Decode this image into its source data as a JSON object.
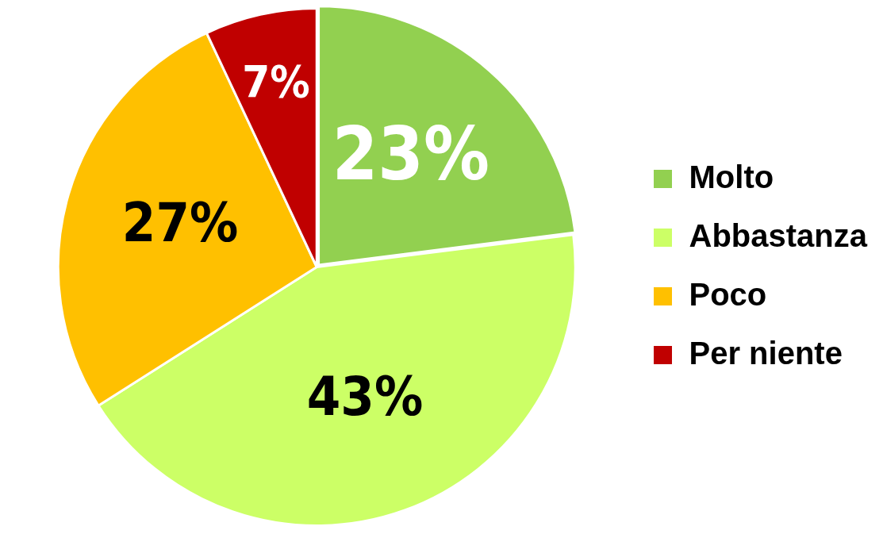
{
  "chart_data": {
    "type": "pie",
    "categories": [
      "Molto",
      "Abbastanza",
      "Poco",
      "Per niente"
    ],
    "values": [
      23,
      43,
      27,
      7
    ],
    "colors": [
      "#92d050",
      "#ccff66",
      "#ffc000",
      "#c00000"
    ],
    "value_labels": [
      "23%",
      "43%",
      "27%",
      "7%"
    ],
    "legend": "right"
  }
}
